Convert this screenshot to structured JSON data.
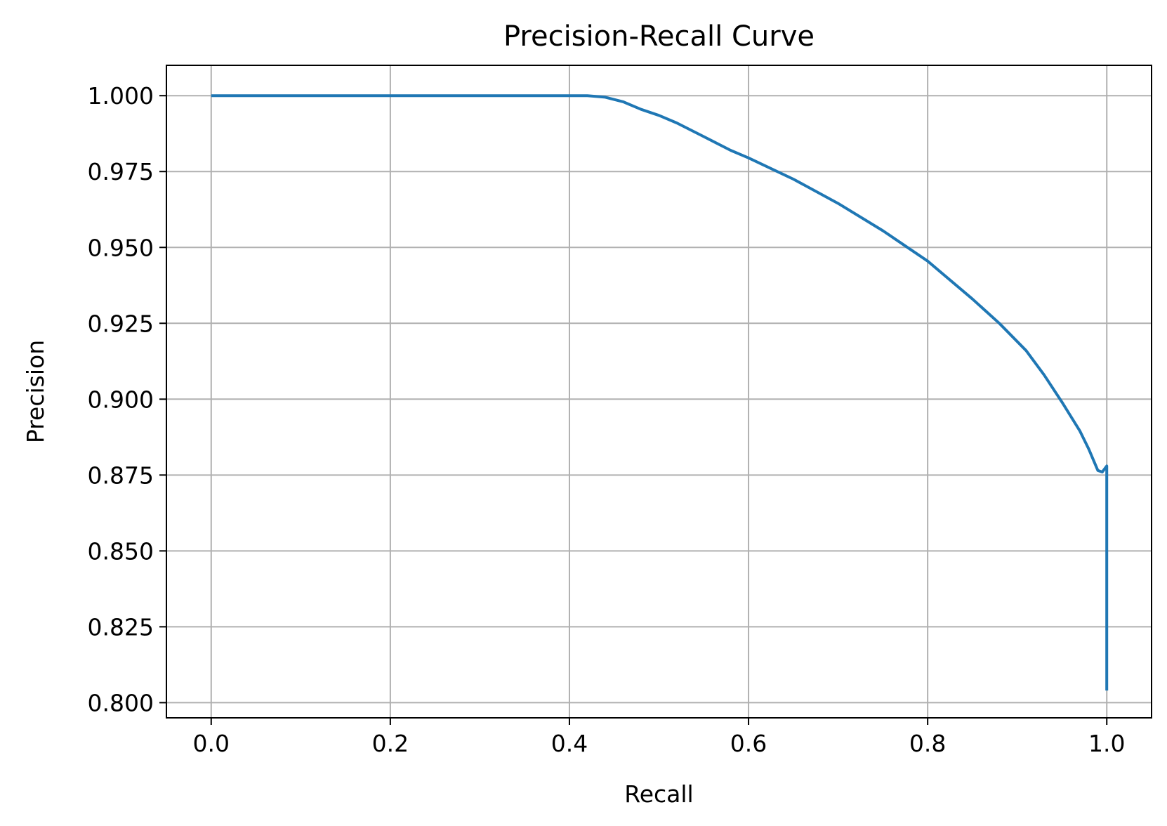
{
  "chart_data": {
    "type": "line",
    "title": "Precision-Recall Curve",
    "xlabel": "Recall",
    "ylabel": "Precision",
    "xlim": [
      -0.05,
      1.05
    ],
    "ylim": [
      0.795,
      1.01
    ],
    "grid": true,
    "x_ticks": [
      0.0,
      0.2,
      0.4,
      0.6,
      0.8,
      1.0
    ],
    "x_tick_labels": [
      "0.0",
      "0.2",
      "0.4",
      "0.6",
      "0.8",
      "1.0"
    ],
    "y_ticks": [
      0.8,
      0.825,
      0.85,
      0.875,
      0.9,
      0.925,
      0.95,
      0.975,
      1.0
    ],
    "y_tick_labels": [
      "0.800",
      "0.825",
      "0.850",
      "0.875",
      "0.900",
      "0.925",
      "0.950",
      "0.975",
      "1.000"
    ],
    "series": [
      {
        "color": "#1f77b4",
        "x": [
          0.0,
          0.1,
          0.2,
          0.3,
          0.4,
          0.42,
          0.44,
          0.46,
          0.48,
          0.5,
          0.52,
          0.55,
          0.58,
          0.6,
          0.65,
          0.7,
          0.75,
          0.8,
          0.85,
          0.88,
          0.91,
          0.93,
          0.95,
          0.97,
          0.98,
          0.99,
          0.995,
          1.0,
          1.0
        ],
        "y": [
          1.0,
          1.0,
          1.0,
          1.0,
          1.0,
          1.0,
          0.9995,
          0.998,
          0.9955,
          0.9935,
          0.991,
          0.9865,
          0.982,
          0.9795,
          0.9725,
          0.9645,
          0.9555,
          0.9455,
          0.933,
          0.925,
          0.916,
          0.908,
          0.899,
          0.8895,
          0.8835,
          0.8765,
          0.876,
          0.878,
          0.804
        ]
      }
    ]
  }
}
